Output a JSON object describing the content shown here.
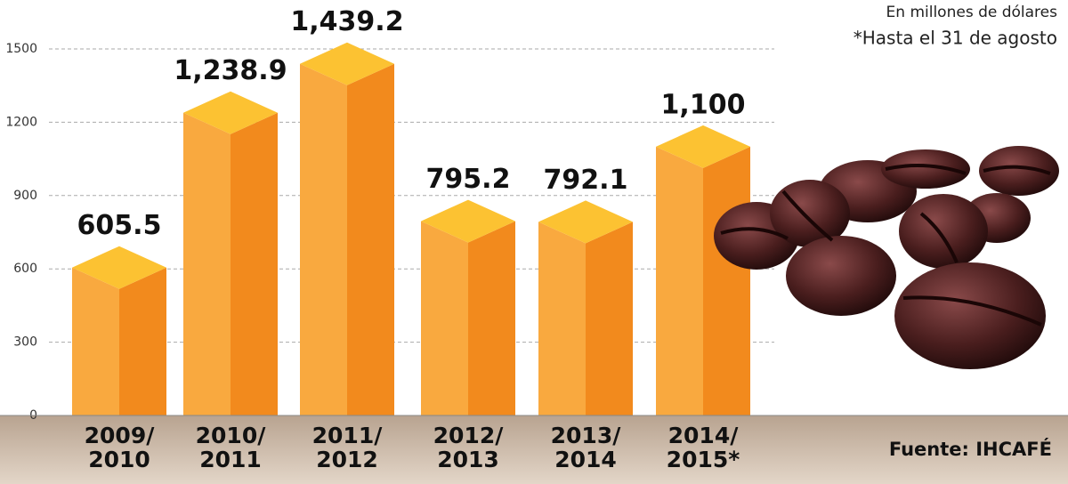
{
  "chart_data": {
    "type": "bar3d",
    "note": "En millones de dólares",
    "note2": "*Hasta el 31 de agosto",
    "source": "Fuente: IHCAFÉ",
    "categories": [
      "2009/\n2010",
      "2010/\n2011",
      "2011/\n2012",
      "2012/\n2013",
      "2013/\n2014",
      "2014/\n2015*"
    ],
    "values": [
      605.5,
      1238.9,
      1439.2,
      795.2,
      792.1,
      1100
    ],
    "value_labels": [
      "605.5",
      "1,238.9",
      "1,439.2",
      "795.2",
      "792.1",
      "1,100"
    ],
    "colors": {
      "left": "#f9a93f",
      "right": "#f28a1d",
      "top": "#fcc232"
    },
    "ylim": [
      0,
      1500
    ],
    "yticks": [
      0,
      300,
      600,
      900,
      1200,
      1500
    ],
    "grid": true
  }
}
